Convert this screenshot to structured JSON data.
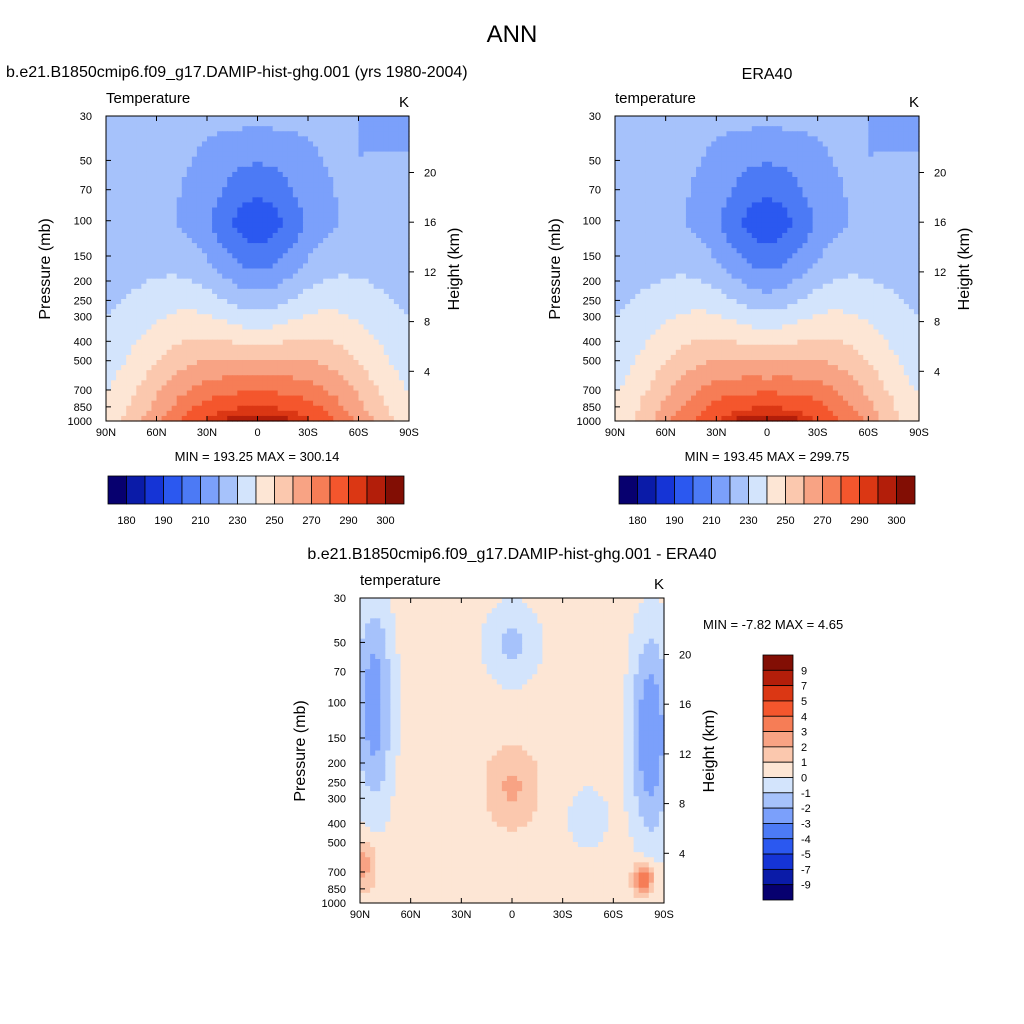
{
  "figure": {
    "title": "ANN"
  },
  "chart_data": [
    {
      "type": "heatmap",
      "id": "model",
      "title": "b.e21.B1850cmip6.f09_g17.DAMIP-hist-ghg.001 (yrs 1980-2004)",
      "left_subtitle": "Temperature",
      "right_subtitle": "K",
      "ylabel": "Pressure (mb)",
      "ylabel_right": "Height (km)",
      "x_ticks": [
        "90N",
        "60N",
        "30N",
        "0",
        "30S",
        "60S",
        "90S"
      ],
      "pressure_ticks": [
        "30",
        "50",
        "70",
        "100",
        "150",
        "200",
        "250",
        "300",
        "400",
        "500",
        "700",
        "850",
        "1000"
      ],
      "height_ticks": [
        "4",
        "8",
        "12",
        "16",
        "20"
      ],
      "stats": "MIN = 193.25  MAX = 300.14",
      "min": 193.25,
      "max": 300.14,
      "colorbar": {
        "orientation": "horizontal",
        "levels": [
          180,
          185,
          190,
          200,
          210,
          220,
          230,
          240,
          250,
          260,
          270,
          280,
          290,
          295,
          300
        ],
        "tick_labels": [
          "180",
          "190",
          "210",
          "230",
          "250",
          "270",
          "290",
          "300"
        ],
        "colors": [
          "#07006f",
          "#0a1ba8",
          "#1534d6",
          "#2b58f0",
          "#4c7af5",
          "#7ba0fb",
          "#a6c2fb",
          "#d3e4fc",
          "#fde6d5",
          "#fbc8ae",
          "#f8a384",
          "#f67d56",
          "#f4562d",
          "#db3714",
          "#b31e0a",
          "#820e04"
        ]
      }
    },
    {
      "type": "heatmap",
      "id": "obs",
      "title": "ERA40",
      "left_subtitle": "temperature",
      "right_subtitle": "K",
      "ylabel": "Pressure (mb)",
      "ylabel_right": "Height (km)",
      "x_ticks": [
        "90N",
        "60N",
        "30N",
        "0",
        "30S",
        "60S",
        "90S"
      ],
      "pressure_ticks": [
        "30",
        "50",
        "70",
        "100",
        "150",
        "200",
        "250",
        "300",
        "400",
        "500",
        "700",
        "850",
        "1000"
      ],
      "height_ticks": [
        "4",
        "8",
        "12",
        "16",
        "20"
      ],
      "stats": "MIN = 193.45  MAX = 299.75",
      "min": 193.45,
      "max": 299.75,
      "colorbar": {
        "orientation": "horizontal",
        "levels": [
          180,
          185,
          190,
          200,
          210,
          220,
          230,
          240,
          250,
          260,
          270,
          280,
          290,
          295,
          300
        ],
        "tick_labels": [
          "180",
          "190",
          "210",
          "230",
          "250",
          "270",
          "290",
          "300"
        ],
        "colors": [
          "#07006f",
          "#0a1ba8",
          "#1534d6",
          "#2b58f0",
          "#4c7af5",
          "#7ba0fb",
          "#a6c2fb",
          "#d3e4fc",
          "#fde6d5",
          "#fbc8ae",
          "#f8a384",
          "#f67d56",
          "#f4562d",
          "#db3714",
          "#b31e0a",
          "#820e04"
        ]
      }
    },
    {
      "type": "heatmap",
      "id": "diff",
      "title": "b.e21.B1850cmip6.f09_g17.DAMIP-hist-ghg.001 - ERA40",
      "left_subtitle": "temperature",
      "right_subtitle": "K",
      "ylabel": "Pressure (mb)",
      "ylabel_right": "Height (km)",
      "x_ticks": [
        "90N",
        "60N",
        "30N",
        "0",
        "30S",
        "60S",
        "90S"
      ],
      "pressure_ticks": [
        "30",
        "50",
        "70",
        "100",
        "150",
        "200",
        "250",
        "300",
        "400",
        "500",
        "700",
        "850",
        "1000"
      ],
      "height_ticks": [
        "4",
        "8",
        "12",
        "16",
        "20"
      ],
      "stats": "MIN =  -7.82  MAX =   4.65",
      "min": -7.82,
      "max": 4.65,
      "colorbar": {
        "orientation": "vertical",
        "levels": [
          9,
          7,
          5,
          4,
          3,
          2,
          1,
          0,
          -1,
          -2,
          -3,
          -4,
          -5,
          -7,
          -9
        ],
        "tick_labels": [
          "9",
          "7",
          "5",
          "4",
          "3",
          "2",
          "1",
          "0",
          "-1",
          "-2",
          "-3",
          "-4",
          "-5",
          "-7",
          "-9"
        ],
        "colors": [
          "#820e04",
          "#b31e0a",
          "#db3714",
          "#f4562d",
          "#f67d56",
          "#f8a384",
          "#fbc8ae",
          "#fde6d5",
          "#d3e4fc",
          "#a6c2fb",
          "#7ba0fb",
          "#4c7af5",
          "#2b58f0",
          "#1534d6",
          "#0a1ba8",
          "#07006f"
        ]
      }
    }
  ]
}
